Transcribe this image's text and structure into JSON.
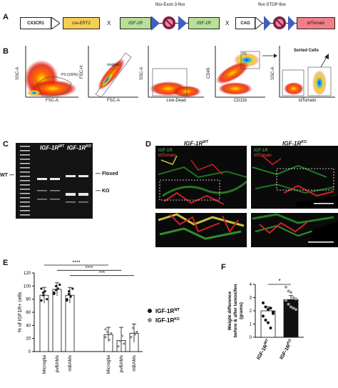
{
  "panels": {
    "A": "A",
    "B": "B",
    "C": "C",
    "D": "D",
    "E": "E",
    "F": "F"
  },
  "panel_a": {
    "cx3cr1": "CX3CR1",
    "cre": "cre-ERT2",
    "x1": "X",
    "floxed_header": "flox-Exon 3-flox",
    "igf1r_left": "IGF-1R",
    "igf1r_right": "IGF-1R",
    "x2": "X",
    "stop_header": "flox-STOP-flox",
    "cag": "CAG",
    "tdtomato": "tdTomato"
  },
  "panel_b": {
    "plots": [
      {
        "ylabel": "SSC-A",
        "xlabel": "FSC-A",
        "gate": "P3-(100%)"
      },
      {
        "ylabel": "FSC-H",
        "xlabel": "FSC-A",
        "gate": "singlets"
      },
      {
        "ylabel": "SSC-A",
        "xlabel": "Live-Dead",
        "gate": ""
      },
      {
        "ylabel": "CD45",
        "xlabel": "CD11b",
        "gate": "P1"
      },
      {
        "ylabel": "SSC-A",
        "xlabel": "tdTomato",
        "gate": ""
      }
    ],
    "sorted_cells": "Sorted Cells"
  },
  "panel_c": {
    "wt_label": "WT",
    "lane1": "IGF-1R",
    "lane1_sup": "WT",
    "lane2": "IGF-1R",
    "lane2_sup": "KO",
    "floxed": "Floxed",
    "ko": "KO"
  },
  "panel_d": {
    "title_left": "IGF-1R",
    "title_left_sup": "WT",
    "title_right": "IGF-1R",
    "title_right_sup": "KO",
    "legend_green": "IGF-1R",
    "legend_red": "tdTomato"
  },
  "panel_e": {
    "ylabel": "% of IGF1R+ cells",
    "yticks": [
      "0",
      "20",
      "40",
      "60",
      "80",
      "100",
      "120"
    ],
    "categories": [
      "Microglia",
      "pvBAMs",
      "mBAMs",
      "Microglia",
      "pvBAMs",
      "mBAMs"
    ],
    "sig": [
      "****",
      "****",
      "***"
    ],
    "legend": [
      {
        "name": "IGF-1R",
        "sup": "WT",
        "color": "#111111"
      },
      {
        "name": "IGF-1R",
        "sup": "KO",
        "color": "#8a8a8a"
      }
    ]
  },
  "panel_f": {
    "ylabel_1": "Weight difference",
    "ylabel_2": "before & after tamoxifen",
    "ylabel_3": "(grams)",
    "yticks": [
      "0",
      "1",
      "2",
      "3",
      "4"
    ],
    "categories": [
      "IGF-1R",
      "IGF-1R"
    ],
    "category_sups": [
      "WT",
      "KO"
    ],
    "sig": "*"
  },
  "chart_data": [
    {
      "type": "bar",
      "categories": [
        "Microglia",
        "pvBAMs",
        "mBAMs",
        "Microglia",
        "pvBAMs",
        "mBAMs"
      ],
      "series": [
        {
          "name": "IGF-1R WT",
          "values": [
            86,
            95,
            86,
            null,
            null,
            null
          ]
        },
        {
          "name": "IGF-1R KO",
          "values": [
            null,
            null,
            null,
            26,
            17,
            28
          ]
        }
      ],
      "errors": [
        12,
        10,
        12,
        11,
        20,
        14
      ],
      "ylabel": "% of IGF1R+ cells",
      "ylim": [
        0,
        120
      ]
    },
    {
      "type": "bar",
      "categories": [
        "IGF-1R WT",
        "IGF-1R KO"
      ],
      "values": [
        2.0,
        2.85
      ],
      "errors": [
        0.3,
        0.3
      ],
      "ylabel": "Weight difference before & after tamoxifen (grams)",
      "ylim": [
        0,
        4
      ]
    }
  ],
  "colors": {
    "cre": "#f5cf55",
    "igf1r": "#b8e09a",
    "tdtomato": "#f17f8a",
    "lox": "#3f5fbf",
    "stop": "#7a1f3d",
    "gel_bg": "#141414",
    "facs_red": "#e03020"
  }
}
